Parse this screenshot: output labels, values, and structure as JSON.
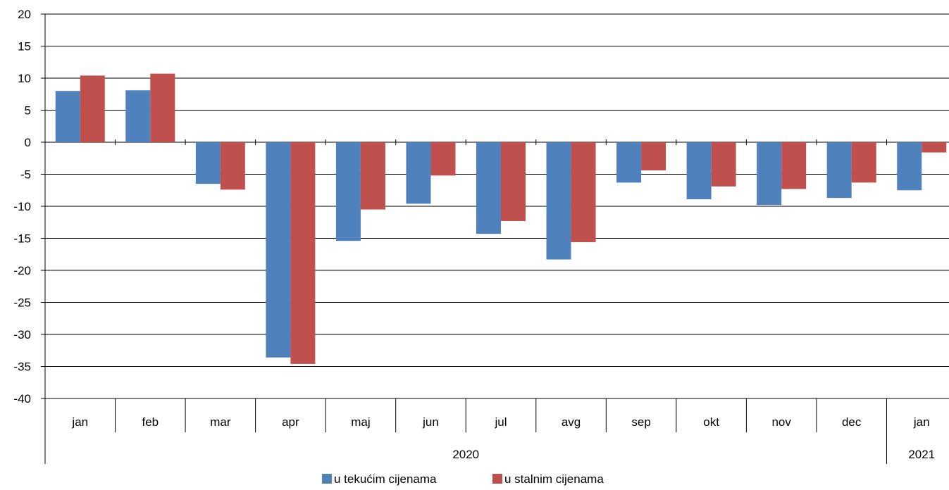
{
  "chart_data": {
    "type": "bar",
    "categories": [
      "jan",
      "feb",
      "mar",
      "apr",
      "maj",
      "jun",
      "jul",
      "avg",
      "sep",
      "okt",
      "nov",
      "dec",
      "jan"
    ],
    "groups": [
      {
        "label": "2020",
        "start": 0,
        "end": 11
      },
      {
        "label": "2021",
        "start": 12,
        "end": 12
      }
    ],
    "series": [
      {
        "name": "u tekućim cijenama",
        "color": "#4F81BD",
        "values": [
          8.0,
          8.1,
          -6.5,
          -33.6,
          -15.4,
          -9.6,
          -14.3,
          -18.3,
          -6.3,
          -8.9,
          -9.8,
          -8.7,
          -7.5
        ]
      },
      {
        "name": "u stalnim cijenama",
        "color": "#C0504D",
        "values": [
          10.4,
          10.7,
          -7.4,
          -34.6,
          -10.5,
          -5.2,
          -12.3,
          -15.6,
          -4.4,
          -6.9,
          -7.3,
          -6.3,
          -1.6
        ]
      }
    ],
    "ylim": [
      -40,
      20
    ],
    "yticks": [
      20,
      15,
      10,
      5,
      0,
      -5,
      -10,
      -15,
      -20,
      -25,
      -30,
      -35,
      -40
    ],
    "grid": true,
    "legend": "bottom"
  }
}
